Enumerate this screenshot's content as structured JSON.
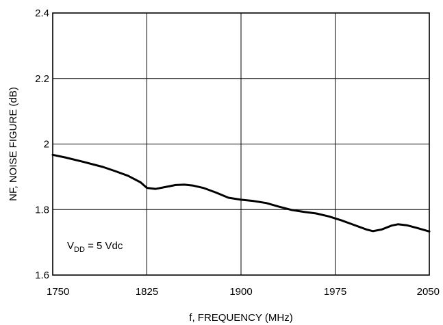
{
  "chart_data": {
    "type": "line",
    "xlabel": "f, FREQUENCY (MHz)",
    "ylabel": "NF, NOISE FIGURE (dB)",
    "xlim": [
      1750,
      2050
    ],
    "ylim": [
      1.6,
      2.4
    ],
    "x_ticks": [
      "1750",
      "1825",
      "1900",
      "1975",
      "2050"
    ],
    "x_tick_values": [
      1750,
      1825,
      1900,
      1975,
      2050
    ],
    "y_ticks": [
      "1.6",
      "1.8",
      "2",
      "2.2",
      "2.4"
    ],
    "y_tick_values": [
      1.6,
      1.8,
      2.0,
      2.2,
      2.4
    ],
    "grid": true,
    "annotation": {
      "base": "V",
      "sub": "DD",
      "rest": " = 5 Vdc"
    },
    "series": [
      {
        "x": [
          1750,
          1760,
          1775,
          1790,
          1800,
          1810,
          1820,
          1825,
          1832,
          1840,
          1848,
          1855,
          1862,
          1870,
          1880,
          1890,
          1900,
          1910,
          1920,
          1930,
          1940,
          1950,
          1960,
          1970,
          1980,
          1990,
          2000,
          2005,
          2012,
          2020,
          2025,
          2032,
          2040,
          2050
        ],
        "y": [
          1.967,
          1.959,
          1.945,
          1.93,
          1.917,
          1.903,
          1.883,
          1.866,
          1.863,
          1.869,
          1.875,
          1.876,
          1.873,
          1.866,
          1.852,
          1.836,
          1.83,
          1.826,
          1.82,
          1.809,
          1.799,
          1.793,
          1.788,
          1.779,
          1.767,
          1.753,
          1.739,
          1.734,
          1.739,
          1.751,
          1.755,
          1.752,
          1.744,
          1.733
        ]
      }
    ]
  }
}
